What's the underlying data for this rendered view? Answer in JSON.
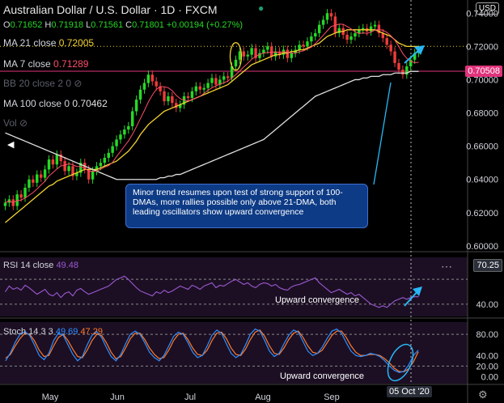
{
  "header": {
    "title": "Australian Dollar / U.S. Dollar · 1D · FXCM",
    "ohlc": [
      {
        "k": "O",
        "v": "0.71652"
      },
      {
        "k": "H",
        "v": "0.71918"
      },
      {
        "k": "L",
        "v": "0.71561"
      },
      {
        "k": "C",
        "v": "0.71801"
      },
      {
        "k": "",
        "v": "+0.00194 (+0.27%)"
      }
    ],
    "ma21": {
      "label": "MA 21 close",
      "value": "0.72005"
    },
    "ma7": {
      "label": "MA 7 close",
      "value": "0.71289"
    },
    "bb": {
      "label": "BB 20 close 2 0"
    },
    "ma100": {
      "label": "MA 100 close 0",
      "value": "0.70462"
    },
    "vol": {
      "label": "Vol"
    },
    "currency": "USD"
  },
  "note_text": "Minor trend resumes upon test of strong support of 100-DMAs, more rallies possible only above 21-DMA, both leading oscillators show upward convergence",
  "rsi": {
    "label": "RSI 14 close",
    "value": "49.48",
    "current": "70.25",
    "annotation": "Upward convergence"
  },
  "stoch": {
    "label": "Stoch 14 3 3",
    "k": "49.69",
    "d": "47.29",
    "annotation": "Upward convergence"
  },
  "price_tag": "0.70508",
  "date_tag": "05 Oct '20",
  "colors": {
    "up": "#26d926",
    "down": "#ef3b3b",
    "ma21": "#f2d230",
    "ma7": "#ff4d6a",
    "ma100": "#e0e0e0",
    "rsi": "#9b59d0",
    "stoch_k": "#2f8fff",
    "stoch_d": "#ff7b2b",
    "annotation": "#29b6f6"
  },
  "chart_data": [
    {
      "type": "candlestick",
      "title": "Australian Dollar / U.S. Dollar · 1D · FXCM",
      "x_labels": [
        "May",
        "Jun",
        "Jul",
        "Aug",
        "Sep"
      ],
      "y_ticks": [
        0.6,
        0.62,
        0.64,
        0.66,
        0.68,
        0.7,
        0.72,
        0.74
      ],
      "ylim": [
        0.598,
        0.745
      ],
      "close": [
        0.626,
        0.628,
        0.624,
        0.631,
        0.629,
        0.635,
        0.64,
        0.638,
        0.643,
        0.641,
        0.646,
        0.652,
        0.649,
        0.655,
        0.651,
        0.645,
        0.648,
        0.642,
        0.644,
        0.65,
        0.646,
        0.64,
        0.645,
        0.648,
        0.65,
        0.653,
        0.656,
        0.66,
        0.664,
        0.667,
        0.67,
        0.672,
        0.681,
        0.688,
        0.694,
        0.698,
        0.703,
        0.699,
        0.696,
        0.693,
        0.687,
        0.69,
        0.686,
        0.683,
        0.685,
        0.69,
        0.689,
        0.693,
        0.696,
        0.694,
        0.695,
        0.698,
        0.701,
        0.697,
        0.7,
        0.702,
        0.701,
        0.708,
        0.712,
        0.717,
        0.714,
        0.715,
        0.719,
        0.713,
        0.716,
        0.718,
        0.72,
        0.714,
        0.717,
        0.715,
        0.718,
        0.713,
        0.716,
        0.718,
        0.721,
        0.72,
        0.723,
        0.726,
        0.728,
        0.733,
        0.736,
        0.74,
        0.738,
        0.728,
        0.731,
        0.727,
        0.724,
        0.726,
        0.728,
        0.73,
        0.731,
        0.729,
        0.732,
        0.733,
        0.728,
        0.725,
        0.721,
        0.717,
        0.71,
        0.706,
        0.703,
        0.708,
        0.712,
        0.716,
        0.718
      ],
      "ma21_close": [
        0.614,
        0.616,
        0.618,
        0.62,
        0.622,
        0.624,
        0.626,
        0.628,
        0.63,
        0.632,
        0.634,
        0.636,
        0.637,
        0.639,
        0.64,
        0.641,
        0.642,
        0.643,
        0.644,
        0.645,
        0.646,
        0.646,
        0.646,
        0.646,
        0.647,
        0.648,
        0.649,
        0.65,
        0.651,
        0.653,
        0.655,
        0.657,
        0.66,
        0.663,
        0.667,
        0.67,
        0.673,
        0.675,
        0.677,
        0.679,
        0.681,
        0.682,
        0.683,
        0.684,
        0.685,
        0.686,
        0.687,
        0.688,
        0.689,
        0.69,
        0.691,
        0.692,
        0.693,
        0.694,
        0.695,
        0.696,
        0.697,
        0.699,
        0.701,
        0.703,
        0.705,
        0.707,
        0.709,
        0.71,
        0.711,
        0.712,
        0.713,
        0.714,
        0.715,
        0.715,
        0.716,
        0.716,
        0.717,
        0.717,
        0.718,
        0.718,
        0.719,
        0.72,
        0.721,
        0.722,
        0.724,
        0.726,
        0.727,
        0.728,
        0.729,
        0.729,
        0.73,
        0.73,
        0.73,
        0.73,
        0.73,
        0.73,
        0.73,
        0.73,
        0.729,
        0.728,
        0.727,
        0.726,
        0.724,
        0.722,
        0.721,
        0.72,
        0.72,
        0.72,
        0.72
      ],
      "ma100_close": [
        0.668,
        0.667,
        0.666,
        0.665,
        0.664,
        0.663,
        0.662,
        0.661,
        0.66,
        0.659,
        0.658,
        0.657,
        0.656,
        0.655,
        0.654,
        0.653,
        0.652,
        0.651,
        0.65,
        0.649,
        0.648,
        0.647,
        0.646,
        0.645,
        0.644,
        0.643,
        0.642,
        0.641,
        0.64,
        0.64,
        0.64,
        0.64,
        0.64,
        0.64,
        0.64,
        0.64,
        0.64,
        0.64,
        0.64,
        0.641,
        0.641,
        0.642,
        0.642,
        0.643,
        0.643,
        0.644,
        0.645,
        0.646,
        0.647,
        0.648,
        0.649,
        0.65,
        0.651,
        0.652,
        0.653,
        0.654,
        0.655,
        0.656,
        0.657,
        0.658,
        0.659,
        0.66,
        0.661,
        0.662,
        0.663,
        0.664,
        0.666,
        0.668,
        0.67,
        0.672,
        0.674,
        0.676,
        0.678,
        0.68,
        0.682,
        0.684,
        0.686,
        0.688,
        0.69,
        0.691,
        0.692,
        0.693,
        0.694,
        0.695,
        0.696,
        0.697,
        0.698,
        0.699,
        0.7,
        0.7,
        0.701,
        0.701,
        0.702,
        0.702,
        0.702,
        0.703,
        0.703,
        0.703,
        0.704,
        0.704,
        0.704,
        0.704,
        0.705,
        0.705,
        0.705
      ]
    },
    {
      "type": "line",
      "title": "RSI 14 close",
      "y_ticks": [
        40.0,
        70.25
      ],
      "ylim": [
        28,
        95
      ],
      "values": [
        55,
        62,
        58,
        60,
        57,
        63,
        60,
        56,
        52,
        55,
        58,
        52,
        50,
        54,
        48,
        53,
        55,
        50,
        57,
        59,
        55,
        52,
        54,
        56,
        58,
        60,
        62,
        66,
        70,
        72,
        74,
        70,
        65,
        60,
        56,
        54,
        52,
        50,
        55,
        53,
        57,
        54,
        56,
        59,
        62,
        60,
        58,
        63,
        61,
        58,
        62,
        64,
        66,
        60,
        63,
        62,
        65,
        68,
        70,
        67,
        64,
        66,
        62,
        60,
        64,
        66,
        65,
        62,
        64,
        60,
        58,
        57,
        61,
        63,
        64,
        66,
        68,
        70,
        72,
        66,
        62,
        58,
        54,
        56,
        58,
        55,
        52,
        54,
        50,
        52,
        48,
        44,
        40,
        38,
        36,
        38,
        36,
        40,
        44,
        46,
        48,
        46,
        48,
        49,
        49
      ]
    },
    {
      "type": "line",
      "title": "Stoch 14 3 3",
      "y_ticks": [
        0.0,
        20.0,
        40.0,
        80.0
      ],
      "ylim": [
        -10,
        100
      ],
      "series": [
        {
          "name": "K",
          "values": [
            30,
            45,
            65,
            80,
            85,
            78,
            60,
            40,
            32,
            44,
            68,
            82,
            78,
            60,
            42,
            30,
            38,
            60,
            78,
            85,
            74,
            55,
            38,
            30,
            42,
            62,
            80,
            86,
            80,
            64,
            46,
            36,
            30,
            40,
            58,
            76,
            84,
            80,
            64,
            46,
            36,
            40,
            58,
            78,
            88,
            82,
            62,
            44,
            36,
            42,
            60,
            80,
            90,
            86,
            68,
            48,
            38,
            44,
            62,
            78,
            88,
            84,
            66,
            48,
            40,
            44,
            56,
            72,
            86,
            90,
            82,
            64,
            48,
            40,
            38,
            40,
            44,
            42,
            38,
            30,
            20,
            12,
            8,
            10,
            22,
            40,
            50
          ]
        },
        {
          "name": "D",
          "values": [
            35,
            42,
            58,
            72,
            82,
            80,
            68,
            50,
            38,
            40,
            58,
            74,
            80,
            68,
            52,
            38,
            36,
            50,
            68,
            80,
            78,
            64,
            46,
            34,
            38,
            54,
            72,
            82,
            82,
            70,
            54,
            42,
            34,
            36,
            50,
            68,
            80,
            82,
            70,
            54,
            42,
            40,
            50,
            68,
            82,
            84,
            72,
            54,
            42,
            40,
            52,
            70,
            84,
            88,
            76,
            58,
            44,
            42,
            54,
            70,
            82,
            86,
            74,
            58,
            46,
            44,
            50,
            64,
            78,
            86,
            86,
            74,
            58,
            46,
            40,
            40,
            42,
            42,
            40,
            34,
            26,
            16,
            10,
            9,
            15,
            28,
            47
          ]
        }
      ]
    }
  ]
}
